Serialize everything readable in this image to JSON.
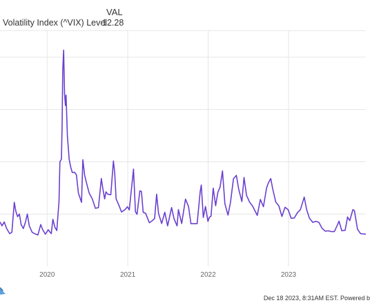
{
  "legend": {
    "header": "VAL",
    "series_label": "Volatility Index (^VIX) Level",
    "series_value": "12.28"
  },
  "footer": {
    "text": "Dec 18 2023, 8:31AM EST. Powered b"
  },
  "colors": {
    "line": "#6a3fd0",
    "grid": "#e6e6e6",
    "axis_text": "#666666"
  },
  "chart_data": {
    "type": "line",
    "title": "",
    "xlabel": "",
    "ylabel": "",
    "x_ticks": [
      "2020",
      "2021",
      "2022",
      "2023"
    ],
    "xlim": [
      "2019-06-01",
      "2023-12-18"
    ],
    "ylim": [
      0,
      90
    ],
    "y_gridlines": [
      20,
      40,
      60,
      80
    ],
    "y_tick_labels_visible": false,
    "grid": true,
    "series": [
      {
        "name": "Volatility Index (^VIX) Level",
        "color": "#6a3fd0",
        "points": [
          [
            "2019-06-01",
            17
          ],
          [
            "2019-06-10",
            15.5
          ],
          [
            "2019-06-20",
            17
          ],
          [
            "2019-07-01",
            14.5
          ],
          [
            "2019-07-15",
            12.5
          ],
          [
            "2019-07-25",
            13
          ],
          [
            "2019-08-05",
            24.5
          ],
          [
            "2019-08-12",
            21
          ],
          [
            "2019-08-20",
            19
          ],
          [
            "2019-08-28",
            20
          ],
          [
            "2019-09-05",
            16
          ],
          [
            "2019-09-15",
            14.5
          ],
          [
            "2019-09-25",
            17
          ],
          [
            "2019-10-03",
            20
          ],
          [
            "2019-10-12",
            15.5
          ],
          [
            "2019-10-25",
            13
          ],
          [
            "2019-11-05",
            12.5
          ],
          [
            "2019-11-20",
            12
          ],
          [
            "2019-12-03",
            16
          ],
          [
            "2019-12-12",
            14
          ],
          [
            "2019-12-24",
            12.3
          ],
          [
            "2020-01-06",
            14
          ],
          [
            "2020-01-20",
            12.5
          ],
          [
            "2020-01-27",
            18
          ],
          [
            "2020-02-05",
            15
          ],
          [
            "2020-02-14",
            13.7
          ],
          [
            "2020-02-24",
            25
          ],
          [
            "2020-02-28",
            40
          ],
          [
            "2020-03-06",
            41
          ],
          [
            "2020-03-09",
            54.5
          ],
          [
            "2020-03-12",
            75
          ],
          [
            "2020-03-16",
            82.7
          ],
          [
            "2020-03-20",
            66
          ],
          [
            "2020-03-24",
            61.5
          ],
          [
            "2020-03-27",
            65.5
          ],
          [
            "2020-04-02",
            50
          ],
          [
            "2020-04-10",
            41
          ],
          [
            "2020-04-17",
            38
          ],
          [
            "2020-04-24",
            35.9
          ],
          [
            "2020-05-04",
            36
          ],
          [
            "2020-05-13",
            35
          ],
          [
            "2020-05-22",
            28
          ],
          [
            "2020-06-05",
            24.5
          ],
          [
            "2020-06-11",
            40.8
          ],
          [
            "2020-06-19",
            35
          ],
          [
            "2020-06-29",
            31.5
          ],
          [
            "2020-07-10",
            28
          ],
          [
            "2020-07-24",
            25.8
          ],
          [
            "2020-08-07",
            22.2
          ],
          [
            "2020-08-21",
            22.5
          ],
          [
            "2020-09-03",
            33.6
          ],
          [
            "2020-09-10",
            29.7
          ],
          [
            "2020-09-18",
            25.8
          ],
          [
            "2020-09-24",
            28.5
          ],
          [
            "2020-10-02",
            27.6
          ],
          [
            "2020-10-16",
            27.4
          ],
          [
            "2020-10-28",
            40.3
          ],
          [
            "2020-11-03",
            35.6
          ],
          [
            "2020-11-09",
            25.8
          ],
          [
            "2020-11-20",
            23.7
          ],
          [
            "2020-12-04",
            20.8
          ],
          [
            "2020-12-18",
            21.6
          ],
          [
            "2020-12-31",
            22.8
          ],
          [
            "2021-01-08",
            21.6
          ],
          [
            "2021-01-27",
            37.2
          ],
          [
            "2021-02-05",
            20.9
          ],
          [
            "2021-02-12",
            19.9
          ],
          [
            "2021-02-25",
            28.9
          ],
          [
            "2021-03-04",
            28.6
          ],
          [
            "2021-03-12",
            20.7
          ],
          [
            "2021-03-23",
            20.3
          ],
          [
            "2021-04-09",
            16.7
          ],
          [
            "2021-04-20",
            17.3
          ],
          [
            "2021-05-03",
            18.3
          ],
          [
            "2021-05-12",
            27.6
          ],
          [
            "2021-05-21",
            20.2
          ],
          [
            "2021-06-04",
            16.4
          ],
          [
            "2021-06-18",
            20.7
          ],
          [
            "2021-07-01",
            15.5
          ],
          [
            "2021-07-19",
            22.5
          ],
          [
            "2021-07-30",
            18.2
          ],
          [
            "2021-08-13",
            15.5
          ],
          [
            "2021-08-19",
            21.7
          ],
          [
            "2021-09-03",
            16.4
          ],
          [
            "2021-09-20",
            25.7
          ],
          [
            "2021-10-04",
            22.9
          ],
          [
            "2021-10-15",
            16.3
          ],
          [
            "2021-10-29",
            16.3
          ],
          [
            "2021-11-12",
            16.3
          ],
          [
            "2021-11-26",
            28.6
          ],
          [
            "2021-12-01",
            31.1
          ],
          [
            "2021-12-10",
            18.7
          ],
          [
            "2021-12-20",
            22.9
          ],
          [
            "2021-12-31",
            17.2
          ],
          [
            "2022-01-07",
            18.8
          ],
          [
            "2022-01-14",
            19.2
          ],
          [
            "2022-01-24",
            29.9
          ],
          [
            "2022-02-04",
            23.2
          ],
          [
            "2022-02-14",
            28.3
          ],
          [
            "2022-02-24",
            30.3
          ],
          [
            "2022-03-07",
            36.5
          ],
          [
            "2022-03-18",
            23.9
          ],
          [
            "2022-04-01",
            19.6
          ],
          [
            "2022-04-12",
            24.3
          ],
          [
            "2022-04-26",
            33.5
          ],
          [
            "2022-05-09",
            34.8
          ],
          [
            "2022-05-20",
            29.4
          ],
          [
            "2022-06-03",
            24.8
          ],
          [
            "2022-06-13",
            34
          ],
          [
            "2022-06-24",
            27.2
          ],
          [
            "2022-07-08",
            24.6
          ],
          [
            "2022-07-22",
            23
          ],
          [
            "2022-08-12",
            19.5
          ],
          [
            "2022-08-26",
            25.6
          ],
          [
            "2022-09-09",
            22.8
          ],
          [
            "2022-09-23",
            29.9
          ],
          [
            "2022-09-30",
            31.6
          ],
          [
            "2022-10-12",
            33.6
          ],
          [
            "2022-10-21",
            29.7
          ],
          [
            "2022-11-04",
            24.6
          ],
          [
            "2022-11-18",
            23.1
          ],
          [
            "2022-12-02",
            19.1
          ],
          [
            "2022-12-16",
            22.6
          ],
          [
            "2022-12-30",
            21.7
          ],
          [
            "2023-01-13",
            18.4
          ],
          [
            "2023-01-27",
            18.5
          ],
          [
            "2023-02-10",
            20.5
          ],
          [
            "2023-02-24",
            21.7
          ],
          [
            "2023-03-13",
            26.5
          ],
          [
            "2023-03-24",
            21.7
          ],
          [
            "2023-04-06",
            18.4
          ],
          [
            "2023-04-21",
            16.8
          ],
          [
            "2023-05-05",
            17.2
          ],
          [
            "2023-05-19",
            16.8
          ],
          [
            "2023-06-02",
            14.6
          ],
          [
            "2023-06-16",
            13.5
          ],
          [
            "2023-06-30",
            13.6
          ],
          [
            "2023-07-14",
            13.3
          ],
          [
            "2023-07-28",
            13.3
          ],
          [
            "2023-08-11",
            15.8
          ],
          [
            "2023-08-18",
            17.3
          ],
          [
            "2023-08-31",
            13.6
          ],
          [
            "2023-09-15",
            13.8
          ],
          [
            "2023-09-26",
            18.9
          ],
          [
            "2023-10-06",
            17.5
          ],
          [
            "2023-10-20",
            21.7
          ],
          [
            "2023-10-27",
            21.3
          ],
          [
            "2023-11-10",
            14.2
          ],
          [
            "2023-11-24",
            12.5
          ],
          [
            "2023-12-08",
            12.4
          ],
          [
            "2023-12-18",
            12.3
          ]
        ]
      }
    ]
  }
}
